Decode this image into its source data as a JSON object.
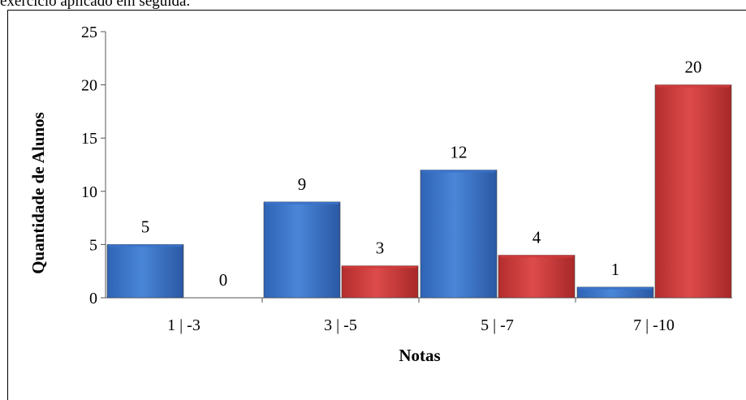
{
  "top_text": "exercício aplicado em seguida.",
  "colors": {
    "series1": "#3a73c9",
    "series2": "#cf3b3b"
  },
  "chart_data": {
    "type": "bar",
    "categories": [
      "1 | -3",
      "3 | -5",
      "5 | -7",
      "7 | -10"
    ],
    "series": [
      {
        "values": [
          5,
          9,
          12,
          1
        ]
      },
      {
        "values": [
          0,
          3,
          4,
          20
        ]
      }
    ],
    "data_labels": [
      [
        "5",
        "9",
        "12",
        "1"
      ],
      [
        "0",
        "3",
        "4",
        "20"
      ]
    ],
    "yticks": [
      "0",
      "5",
      "10",
      "15",
      "20",
      "25"
    ],
    "ylim": [
      0,
      25
    ],
    "xlabel": "Notas",
    "ylabel": "Quantidade de Alunos",
    "grid": false,
    "legend": "none"
  }
}
